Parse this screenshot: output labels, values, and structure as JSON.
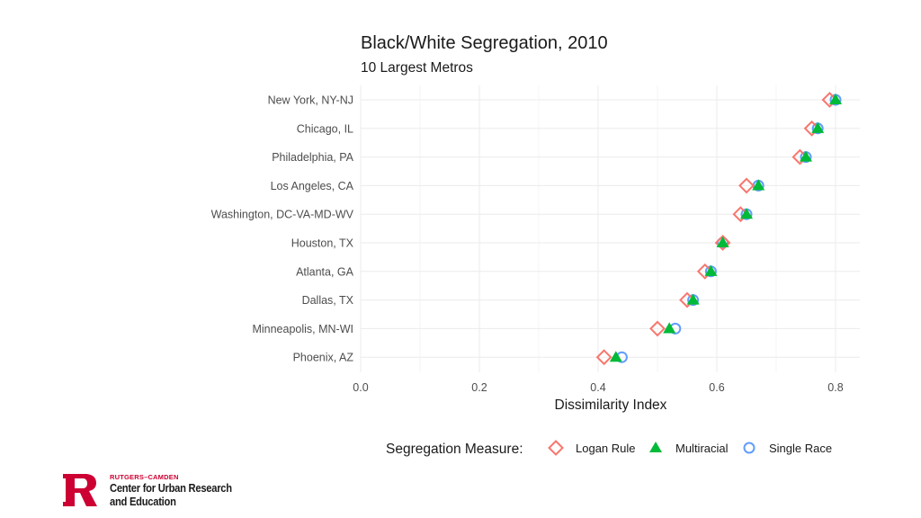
{
  "chart_data": {
    "type": "scatter",
    "title": "Black/White Segregation, 2010",
    "subtitle": "10 Largest Metros",
    "xlabel": "Dissimilarity Index",
    "ylabel": "",
    "xlim": [
      0.0,
      0.84
    ],
    "x_ticks": [
      0.0,
      0.2,
      0.4,
      0.6,
      0.8
    ],
    "x_tick_labels": [
      "0.0",
      "0.2",
      "0.4",
      "0.6",
      "0.8"
    ],
    "grid": true,
    "categories": [
      "New York, NY-NJ",
      "Chicago, IL",
      "Philadelphia, PA",
      "Los Angeles, CA",
      "Washington, DC-VA-MD-WV",
      "Houston, TX",
      "Atlanta, GA",
      "Dallas, TX",
      "Minneapolis, MN-WI",
      "Phoenix, AZ"
    ],
    "series": [
      {
        "name": "Logan Rule",
        "marker": "diamond",
        "color": "#F8766D",
        "values": [
          0.79,
          0.76,
          0.74,
          0.65,
          0.64,
          0.61,
          0.58,
          0.55,
          0.5,
          0.41
        ]
      },
      {
        "name": "Multiracial",
        "marker": "triangle",
        "color": "#00BA38",
        "values": [
          0.8,
          0.77,
          0.75,
          0.67,
          0.65,
          0.61,
          0.59,
          0.56,
          0.52,
          0.43
        ]
      },
      {
        "name": "Single Race",
        "marker": "circle",
        "color": "#619CFF",
        "values": [
          0.8,
          0.77,
          0.75,
          0.67,
          0.65,
          0.61,
          0.59,
          0.56,
          0.53,
          0.44
        ]
      }
    ],
    "legend": {
      "title": "Segregation Measure:",
      "placement": "bottom"
    }
  },
  "logo": {
    "kicker": "RUTGERS–CAMDEN",
    "line1": "Center for Urban Research",
    "line2": "and Education",
    "mark": "R",
    "color": "#cc0033"
  }
}
